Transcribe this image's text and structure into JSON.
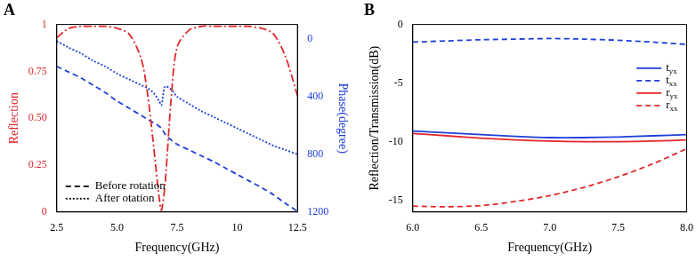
{
  "chart_data": [
    {
      "type": "line",
      "title": "A",
      "x_label": "Frequency(GHz)",
      "y_label": "Reflection",
      "y2_label": "Phase(degree)",
      "x": [
        2.5,
        3,
        3.5,
        4,
        4.5,
        5,
        5.5,
        6,
        6.25,
        6.5,
        6.75,
        6.85,
        7,
        7.25,
        7.5,
        8,
        8.5,
        9,
        9.5,
        10,
        10.5,
        11,
        11.5,
        12,
        12.5
      ],
      "series": [
        {
          "color": "#e3262b",
          "line_style": "dashdot",
          "values": [
            0.93,
            0.98,
            0.99,
            0.99,
            0.99,
            0.98,
            0.95,
            0.82,
            0.65,
            0.38,
            0.08,
            0.01,
            0.15,
            0.6,
            0.88,
            0.97,
            0.99,
            0.99,
            0.99,
            0.99,
            0.99,
            0.98,
            0.95,
            0.83,
            0.62
          ]
        },
        {
          "name": "Before rotation",
          "color": "#1f3fd9",
          "line_style": "dashed",
          "axis": "y2",
          "values": [
            190,
            230,
            270,
            320,
            370,
            430,
            480,
            530,
            555,
            580,
            605,
            620,
            660,
            700,
            730,
            770,
            810,
            850,
            895,
            940,
            985,
            1030,
            1080,
            1140,
            1195
          ]
        },
        {
          "name": "After otation",
          "color": "#1f3fd9",
          "line_style": "dotted",
          "axis": "y2",
          "values": [
            15,
            60,
            100,
            150,
            190,
            240,
            280,
            320,
            340,
            370,
            430,
            460,
            330,
            350,
            400,
            450,
            500,
            540,
            580,
            620,
            660,
            700,
            740,
            770,
            800
          ]
        }
      ],
      "xlim": [
        2.5,
        12.5
      ],
      "xticks": [
        2.5,
        {
          "value": 5,
          "label": "5.0"
        },
        7.5,
        10,
        12.5
      ],
      "ylim": [
        0,
        1
      ],
      "yticks": [
        0,
        0.25,
        {
          "value": 0.5,
          "label": "0.50"
        },
        0.75,
        1
      ],
      "y2lim": [
        1200,
        -100
      ],
      "y2ticks": [
        0,
        400,
        800,
        1200
      ],
      "grid": false,
      "legend": "bottom left"
    },
    {
      "type": "line",
      "title": "B",
      "x_label": "Frequency(GHz)",
      "y_label": "Reflection/Transmission(dB)",
      "x": [
        6,
        6.25,
        6.5,
        6.75,
        7,
        7.25,
        7.5,
        7.75,
        8
      ],
      "series": [
        {
          "name": "tyx",
          "color": "#1f3fd9",
          "line_style": "solid",
          "values": [
            -9.1,
            -9.25,
            -9.4,
            -9.55,
            -9.65,
            -9.65,
            -9.6,
            -9.5,
            -9.4
          ]
        },
        {
          "name": "txx",
          "color": "#1f3fd9",
          "line_style": "dashed",
          "values": [
            -1.5,
            -1.4,
            -1.3,
            -1.25,
            -1.2,
            -1.25,
            -1.35,
            -1.5,
            -1.7
          ]
        },
        {
          "name": "ryx",
          "color": "#e3262b",
          "line_style": "solid",
          "values": [
            -9.3,
            -9.5,
            -9.7,
            -9.85,
            -9.95,
            -10.0,
            -10.0,
            -9.95,
            -9.85
          ]
        },
        {
          "name": "rxx",
          "color": "#e3262b",
          "line_style": "dashed",
          "values": [
            -15.5,
            -15.55,
            -15.45,
            -15.1,
            -14.6,
            -13.9,
            -13.0,
            -11.9,
            -10.6
          ]
        }
      ],
      "xlim": [
        6,
        8
      ],
      "xticks": [
        {
          "value": 6,
          "label": "6.0"
        },
        6.5,
        {
          "value": 7,
          "label": "7.0"
        },
        7.5,
        {
          "value": 8,
          "label": "8.0"
        }
      ],
      "ylim": [
        -16,
        0
      ],
      "yticks": [
        -15,
        -10,
        -5,
        0
      ],
      "grid": false,
      "legend": "right"
    }
  ]
}
